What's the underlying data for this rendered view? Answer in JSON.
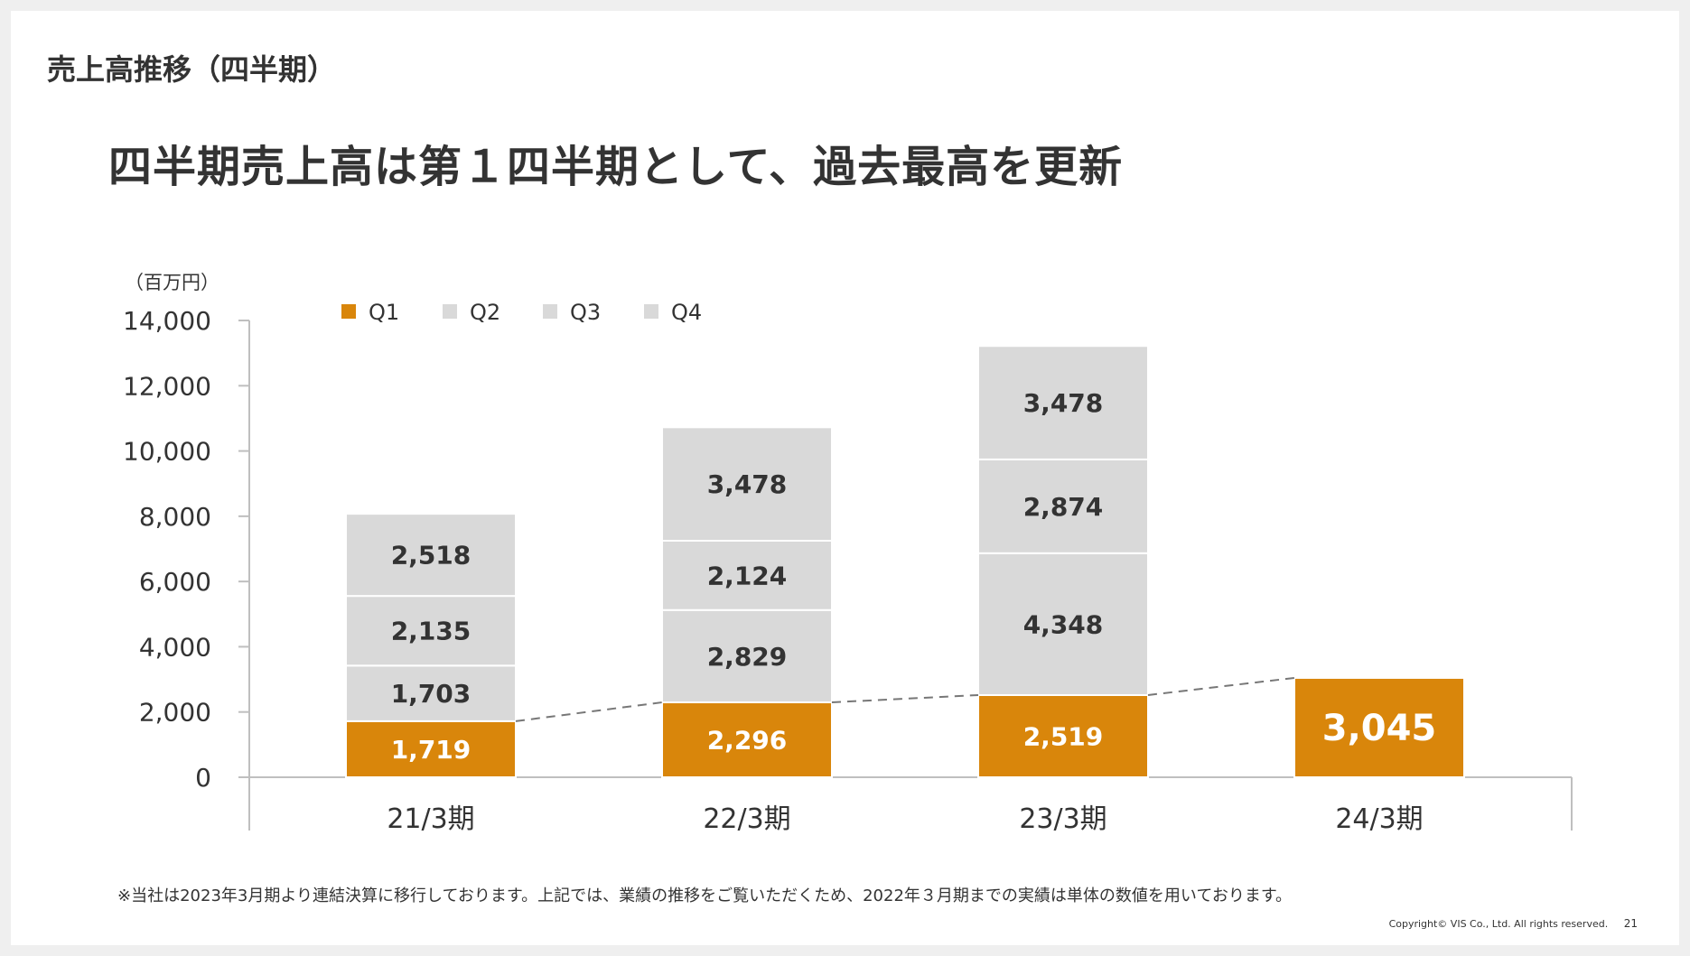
{
  "section_title": "売上高推移（四半期）",
  "headline": "四半期売上高は第１四半期として、過去最高を更新",
  "footnote": "※当社は2023年3月期より連結決算に移行しております。上記では、業績の推移をご覧いただくため、2022年３月期までの実績は単体の数値を用いております。",
  "copyright": "Copyright© VIS Co., Ltd. All rights reserved.",
  "page_number": "21",
  "colors": {
    "q1": "#d9860b",
    "other": "#d9d9d9",
    "connector": "#777777"
  },
  "chart_data": {
    "type": "bar",
    "stacked": true,
    "unit_label": "（百万円）",
    "categories": [
      "21/3期",
      "22/3期",
      "23/3期",
      "24/3期"
    ],
    "series": [
      {
        "name": "Q1",
        "values": [
          1719,
          2296,
          2519,
          3045
        ],
        "labels": [
          "1,719",
          "2,296",
          "2,519",
          "3,045"
        ]
      },
      {
        "name": "Q2",
        "values": [
          1703,
          2829,
          4348,
          null
        ],
        "labels": [
          "1,703",
          "2,829",
          "4,348",
          ""
        ]
      },
      {
        "name": "Q3",
        "values": [
          2135,
          2124,
          2874,
          null
        ],
        "labels": [
          "2,135",
          "2,124",
          "2,874",
          ""
        ]
      },
      {
        "name": "Q4",
        "values": [
          2518,
          3478,
          3478,
          null
        ],
        "labels": [
          "2,518",
          "3,478",
          "3,478",
          ""
        ]
      }
    ],
    "y_ticks": [
      {
        "value": 0,
        "label": "0"
      },
      {
        "value": 2000,
        "label": "2,000"
      },
      {
        "value": 4000,
        "label": "4,000"
      },
      {
        "value": 6000,
        "label": "6,000"
      },
      {
        "value": 8000,
        "label": "8,000"
      },
      {
        "value": 10000,
        "label": "10,000"
      },
      {
        "value": 12000,
        "label": "12,000"
      },
      {
        "value": 14000,
        "label": "14,000"
      }
    ],
    "ylim": [
      0,
      14000
    ],
    "legend": [
      "Q1",
      "Q2",
      "Q3",
      "Q4"
    ],
    "legend_position": "top-left",
    "q1_trend_line": "dashed"
  }
}
